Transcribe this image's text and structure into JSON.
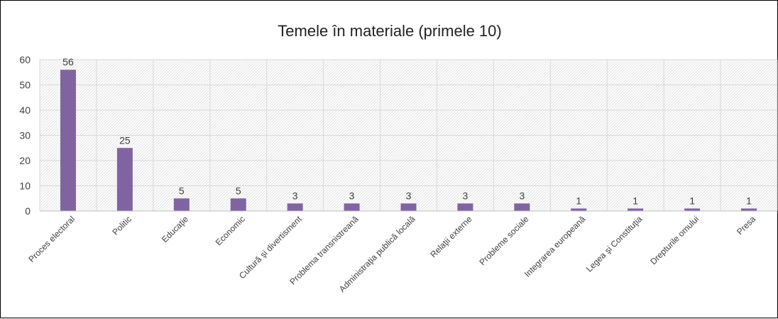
{
  "chart_data": {
    "type": "bar",
    "title": "Temele în materiale (primele 10)",
    "categories": [
      "Proces electoral",
      "Politic",
      "Educaţie",
      "Economic",
      "Cultură şi divertisment",
      "Problema transnistreană",
      "Administraţia publică locală",
      "Relaţii externe",
      "Probleme sociale",
      "Integrarea europeană",
      "Legea şi Constituţia",
      "Drepturile omului",
      "Presa"
    ],
    "values": [
      56,
      25,
      5,
      5,
      3,
      3,
      3,
      3,
      3,
      1,
      1,
      1,
      1
    ],
    "ylim": [
      0,
      60
    ],
    "yticks": [
      0,
      10,
      20,
      30,
      40,
      50,
      60
    ],
    "xlabel": "",
    "ylabel": "",
    "grid": true,
    "data_labels": true,
    "colors": {
      "bar": "#8064A2",
      "grid": "#D9D9D9",
      "hatch": "#E2E2E2",
      "text": "#404040"
    }
  }
}
